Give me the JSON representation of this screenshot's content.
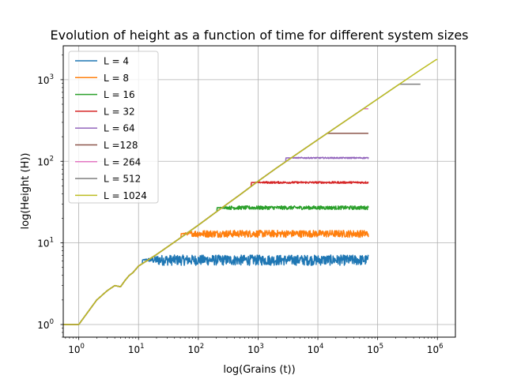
{
  "chart_data": {
    "type": "line",
    "title": "Evolution of height as a function of time for different system sizes",
    "xlabel": "log(Grains (t))",
    "ylabel": "log(Height (H))",
    "xscale": "log",
    "yscale": "log",
    "xlim": [
      0.55,
      2000000
    ],
    "ylim": [
      0.7,
      2600
    ],
    "grid": true,
    "legend_position": "top-left",
    "x_ticks": [
      {
        "base": "10",
        "exp": "0"
      },
      {
        "base": "10",
        "exp": "1"
      },
      {
        "base": "10",
        "exp": "2"
      },
      {
        "base": "10",
        "exp": "3"
      },
      {
        "base": "10",
        "exp": "4"
      },
      {
        "base": "10",
        "exp": "5"
      },
      {
        "base": "10",
        "exp": "6"
      }
    ],
    "y_ticks": [
      {
        "base": "10",
        "exp": "0"
      },
      {
        "base": "10",
        "exp": "1"
      },
      {
        "base": "10",
        "exp": "2"
      },
      {
        "base": "10",
        "exp": "3"
      }
    ],
    "series": [
      {
        "name": "L = 4",
        "color": "#1f77b4",
        "saturation_height": 6.2,
        "noise": 0.9,
        "end_t": 70000
      },
      {
        "name": "L = 8",
        "color": "#ff7f0e",
        "saturation_height": 13,
        "noise": 1.3,
        "end_t": 70000
      },
      {
        "name": "L = 16",
        "color": "#2ca02c",
        "saturation_height": 27,
        "noise": 1.4,
        "end_t": 70000
      },
      {
        "name": "L = 32",
        "color": "#d62728",
        "saturation_height": 55,
        "noise": 1.5,
        "end_t": 70000
      },
      {
        "name": "L = 64",
        "color": "#9467bd",
        "saturation_height": 110,
        "noise": 2,
        "end_t": 70000
      },
      {
        "name": "L =128",
        "color": "#8c564b",
        "saturation_height": 220,
        "noise": 0,
        "end_t": 70000
      },
      {
        "name": "L = 264",
        "color": "#e377c2",
        "saturation_height": 440,
        "noise": 0,
        "end_t": 70000
      },
      {
        "name": "L = 512",
        "color": "#7f7f7f",
        "saturation_height": 880,
        "noise": 0,
        "end_t": 520000
      },
      {
        "name": "L = 1024",
        "color": "#bcbd22",
        "saturation_height": 1760,
        "noise": 0,
        "end_t": 1000000
      }
    ],
    "growth_curve": {
      "x": [
        0.55,
        1,
        2,
        3,
        4,
        5,
        6,
        7,
        8,
        10,
        20,
        50,
        100,
        200,
        500,
        1000,
        2000,
        5000,
        10000,
        20000,
        50000,
        100000,
        200000,
        500000,
        1000000
      ],
      "y": [
        1,
        1,
        2,
        2.6,
        3,
        2.9,
        3.5,
        4,
        4.3,
        5.2,
        7.2,
        11.5,
        16.5,
        24,
        39,
        57,
        82,
        130,
        184,
        260,
        410,
        580,
        820,
        1290,
        1800
      ]
    }
  }
}
